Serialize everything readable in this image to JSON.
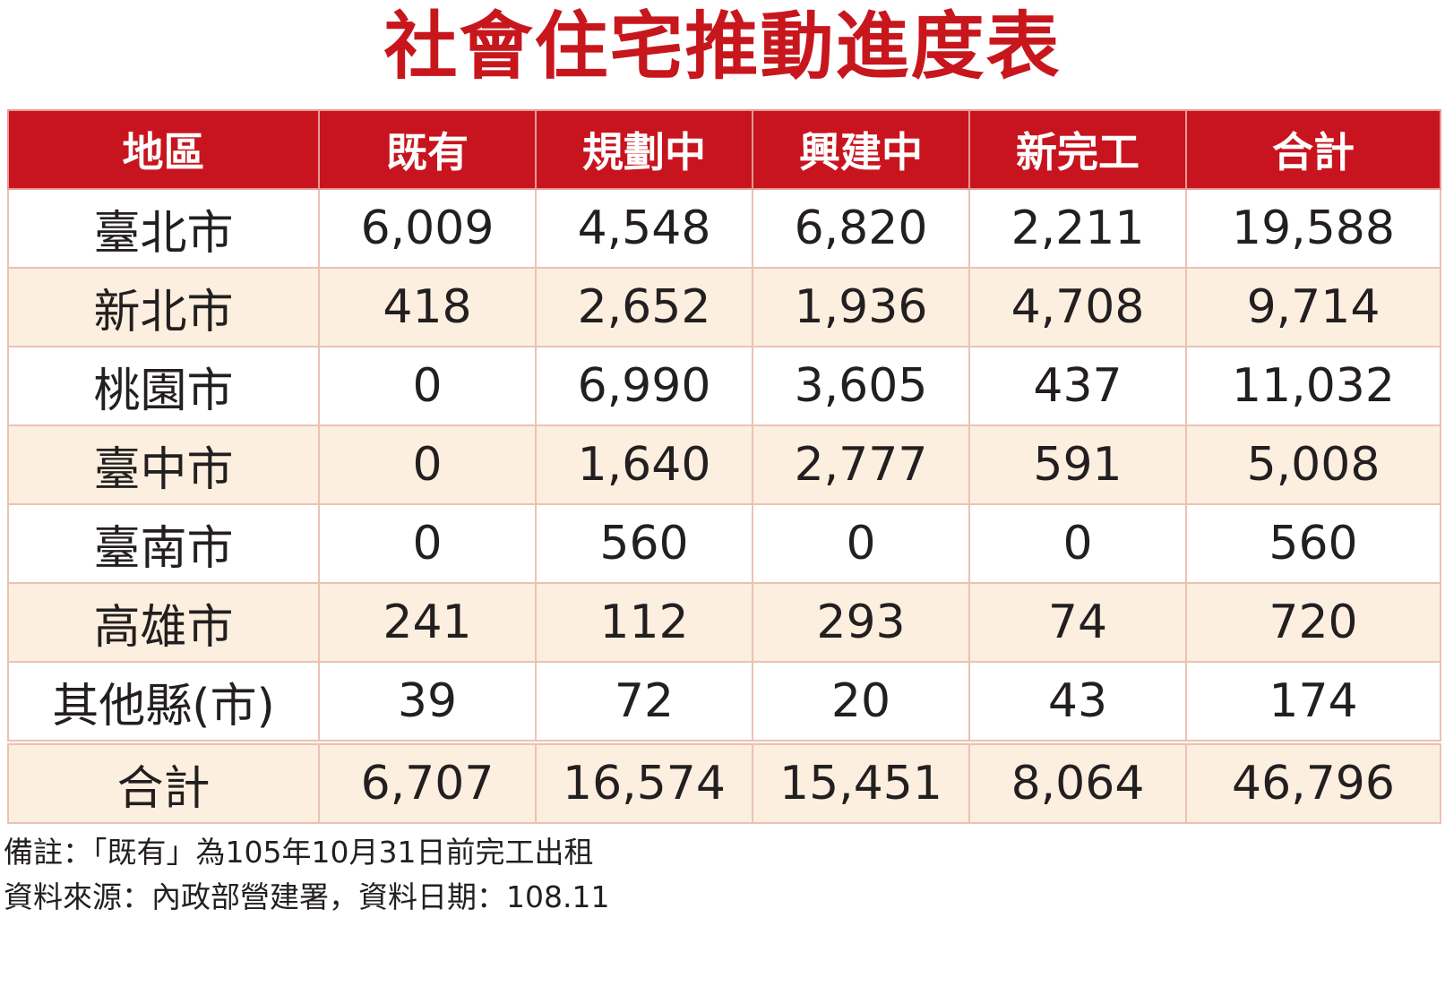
{
  "title": "社會住宅推動進度表",
  "table": {
    "header": [
      "地區",
      "既有",
      "規劃中",
      "興建中",
      "新完工",
      "合計"
    ],
    "rows": [
      [
        "臺北市",
        "6,009",
        "4,548",
        "6,820",
        "2,211",
        "19,588"
      ],
      [
        "新北市",
        "418",
        "2,652",
        "1,936",
        "4,708",
        "9,714"
      ],
      [
        "桃園市",
        "0",
        "6,990",
        "3,605",
        "437",
        "11,032"
      ],
      [
        "臺中市",
        "0",
        "1,640",
        "2,777",
        "591",
        "5,008"
      ],
      [
        "臺南市",
        "0",
        "560",
        "0",
        "0",
        "560"
      ],
      [
        "高雄市",
        "241",
        "112",
        "293",
        "74",
        "720"
      ],
      [
        "其他縣(市)",
        "39",
        "72",
        "20",
        "43",
        "174"
      ]
    ],
    "total": [
      "合計",
      "6,707",
      "16,574",
      "15,451",
      "8,064",
      "46,796"
    ]
  },
  "notes": [
    "備註：「既有」為105年10月31日前完工出租",
    "資料來源：內政部營建署，資料日期：108.11"
  ]
}
